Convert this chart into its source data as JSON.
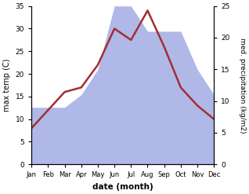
{
  "months": [
    "Jan",
    "Feb",
    "Mar",
    "Apr",
    "May",
    "Jun",
    "Jul",
    "Aug",
    "Sep",
    "Oct",
    "Nov",
    "Dec"
  ],
  "month_indices": [
    0,
    1,
    2,
    3,
    4,
    5,
    6,
    7,
    8,
    9,
    10,
    11
  ],
  "temperature": [
    8,
    12,
    16,
    17,
    22,
    30,
    27.5,
    34,
    26,
    17,
    13,
    10
  ],
  "precipitation": [
    9,
    9,
    9,
    11,
    15,
    25,
    25,
    21,
    21,
    21,
    15,
    11
  ],
  "temp_ylim": [
    0,
    35
  ],
  "precip_ylim": [
    0,
    25
  ],
  "temp_yticks": [
    0,
    5,
    10,
    15,
    20,
    25,
    30,
    35
  ],
  "precip_yticks": [
    0,
    5,
    10,
    15,
    20,
    25
  ],
  "temp_color": "#a03030",
  "precip_color_fill": "#b0b8e8",
  "xlabel": "date (month)",
  "ylabel_left": "max temp (C)",
  "ylabel_right": "med. precipitation (kg/m2)",
  "bg_color": "#ffffff"
}
